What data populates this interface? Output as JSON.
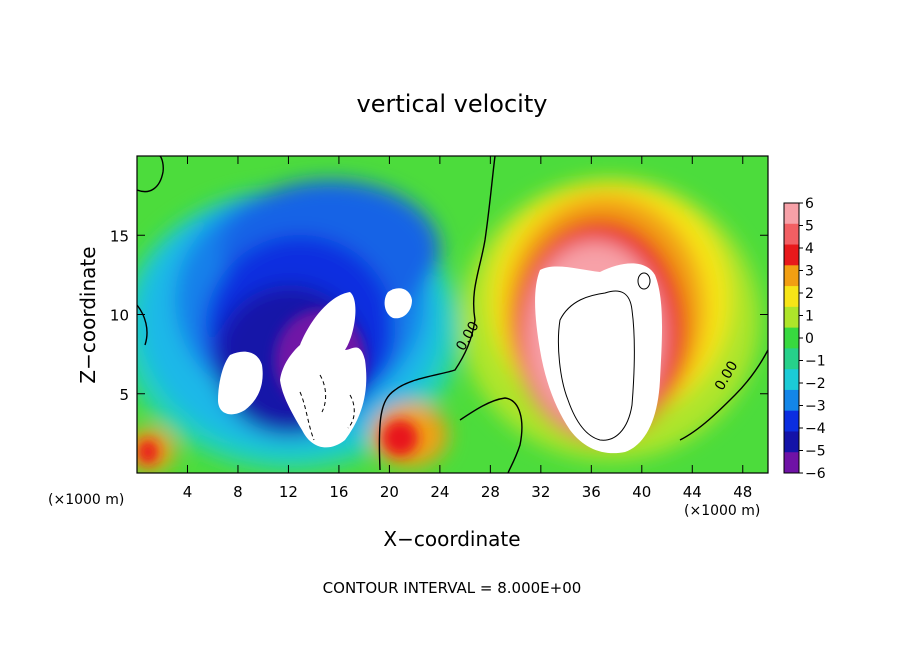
{
  "chart_data": {
    "type": "heatmap",
    "title": "vertical velocity",
    "xlabel": "X−coordinate",
    "ylabel": "Z−coordinate",
    "x_unit": "(×1000 m)",
    "x_ticks": [
      4,
      8,
      12,
      16,
      20,
      24,
      28,
      32,
      36,
      40,
      44,
      48
    ],
    "y_ticks": [
      5,
      10,
      15
    ],
    "xlim": [
      0,
      50
    ],
    "ylim": [
      0,
      20
    ],
    "colorbar": {
      "ticks": [
        6,
        5,
        4,
        3,
        2,
        1,
        0,
        -1,
        -2,
        -3,
        -4,
        -5,
        -6
      ],
      "tick_labels": [
        "6",
        "5",
        "4",
        "3",
        "2",
        "1",
        "0",
        "−1",
        "−2",
        "−3",
        "−4",
        "−5",
        "−6"
      ],
      "colors": [
        "#f7a1a8",
        "#f25f63",
        "#e8191b",
        "#f29f12",
        "#f7e517",
        "#aee52a",
        "#38d93f",
        "#26d18a",
        "#1bcbd6",
        "#1386e8",
        "#0b2ee0",
        "#1413a8",
        "#6f12a6"
      ],
      "range": [
        -6,
        6
      ]
    },
    "contour_labels": [
      {
        "text": "0.00",
        "x": 26.5,
        "y": 8.5
      },
      {
        "text": "0.00",
        "x": 47,
        "y": 6
      }
    ],
    "features": [
      {
        "kind": "downdraft-core",
        "sign": "negative",
        "x_range": [
          6,
          20
        ],
        "z_range": [
          1,
          11
        ],
        "min": -6
      },
      {
        "kind": "updraft-core",
        "sign": "positive",
        "x_range": [
          31,
          41
        ],
        "z_range": [
          1,
          13
        ],
        "max": 6
      },
      {
        "kind": "weak-updraft",
        "sign": "positive",
        "x_range": [
          19,
          24
        ],
        "z_range": [
          1,
          5
        ],
        "max": 4
      }
    ],
    "footer": "CONTOUR INTERVAL = 8.000E+00"
  }
}
